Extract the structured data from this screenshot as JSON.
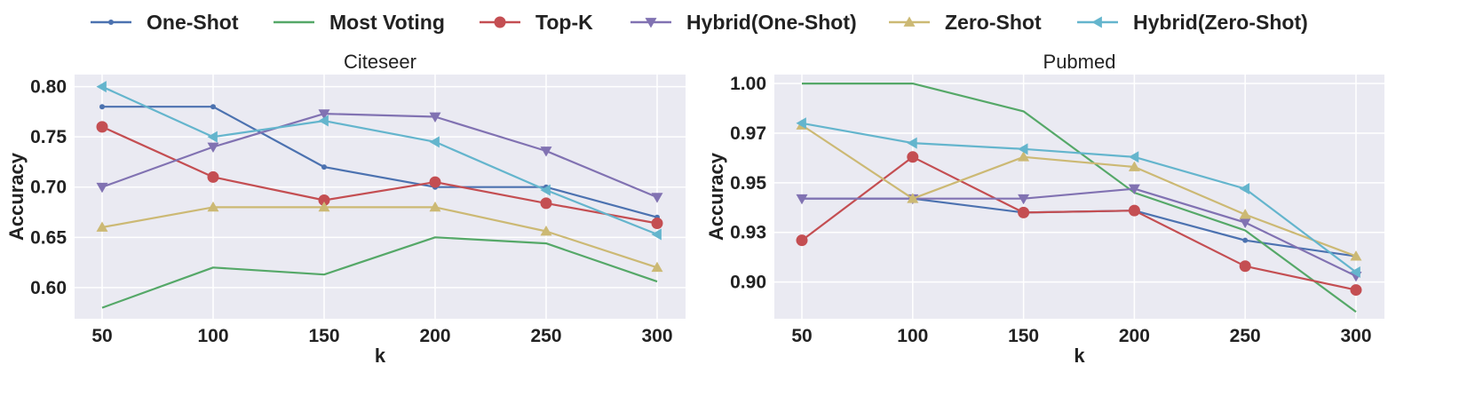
{
  "chart_data": {
    "type": "line",
    "legend": {
      "placement": "top-center",
      "series": [
        {
          "name": "One-Shot",
          "color": "#4c72b0",
          "marker": "small-circle"
        },
        {
          "name": "Most Voting",
          "color": "#55a868",
          "marker": "none"
        },
        {
          "name": "Top-K",
          "color": "#c44e52",
          "marker": "circle"
        },
        {
          "name": "Hybrid(One-Shot)",
          "color": "#8172b2",
          "marker": "triangle-down"
        },
        {
          "name": "Zero-Shot",
          "color": "#ccb974",
          "marker": "triangle-up"
        },
        {
          "name": "Hybrid(Zero-Shot)",
          "color": "#64b5cd",
          "marker": "triangle-left"
        }
      ]
    },
    "panels": [
      {
        "title": "Citeseer",
        "xlabel": "k",
        "ylabel": "Accuracy",
        "x": [
          50,
          100,
          150,
          200,
          250,
          300
        ],
        "xticks": [
          "50",
          "100",
          "150",
          "200",
          "250",
          "300"
        ],
        "ylim": [
          0.569,
          0.812
        ],
        "yticks": [
          0.6,
          0.65,
          0.7,
          0.75,
          0.8
        ],
        "ytick_labels": [
          "0.60",
          "0.65",
          "0.70",
          "0.75",
          "0.80"
        ],
        "grid": true,
        "series": [
          {
            "name": "One-Shot",
            "values": [
              0.78,
              0.78,
              0.72,
              0.7,
              0.7,
              0.67
            ]
          },
          {
            "name": "Most Voting",
            "values": [
              0.58,
              0.62,
              0.613,
              0.65,
              0.644,
              0.606
            ]
          },
          {
            "name": "Top-K",
            "values": [
              0.76,
              0.71,
              0.687,
              0.705,
              0.684,
              0.664
            ]
          },
          {
            "name": "Hybrid(One-Shot)",
            "values": [
              0.7,
              0.74,
              0.773,
              0.77,
              0.736,
              0.69
            ]
          },
          {
            "name": "Zero-Shot",
            "values": [
              0.66,
              0.68,
              0.68,
              0.68,
              0.656,
              0.62
            ]
          },
          {
            "name": "Hybrid(Zero-Shot)",
            "values": [
              0.8,
              0.75,
              0.766,
              0.745,
              0.697,
              0.653
            ]
          }
        ]
      },
      {
        "title": "Pubmed",
        "xlabel": "k",
        "ylabel": "Accuracy",
        "x": [
          50,
          100,
          150,
          200,
          250,
          300
        ],
        "xticks": [
          "50",
          "100",
          "150",
          "200",
          "250",
          "300"
        ],
        "ylim": [
          0.8815,
          1.0045
        ],
        "yticks": [
          0.9,
          0.925,
          0.95,
          0.975,
          1.0
        ],
        "ytick_labels": [
          "0.90",
          "0.93",
          "0.95",
          "0.97",
          "1.00"
        ],
        "grid": true,
        "series": [
          {
            "name": "One-Shot",
            "values": [
              0.942,
              0.942,
              0.935,
              0.936,
              0.921,
              0.913
            ]
          },
          {
            "name": "Most Voting",
            "values": [
              1.0,
              1.0,
              0.986,
              0.945,
              0.926,
              0.885
            ]
          },
          {
            "name": "Top-K",
            "values": [
              0.921,
              0.963,
              0.935,
              0.936,
              0.908,
              0.896
            ]
          },
          {
            "name": "Hybrid(One-Shot)",
            "values": [
              0.942,
              0.942,
              0.942,
              0.947,
              0.93,
              0.903
            ]
          },
          {
            "name": "Zero-Shot",
            "values": [
              0.979,
              0.942,
              0.963,
              0.958,
              0.934,
              0.913
            ]
          },
          {
            "name": "Hybrid(Zero-Shot)",
            "values": [
              0.98,
              0.97,
              0.967,
              0.963,
              0.947,
              0.905
            ]
          }
        ]
      }
    ]
  }
}
